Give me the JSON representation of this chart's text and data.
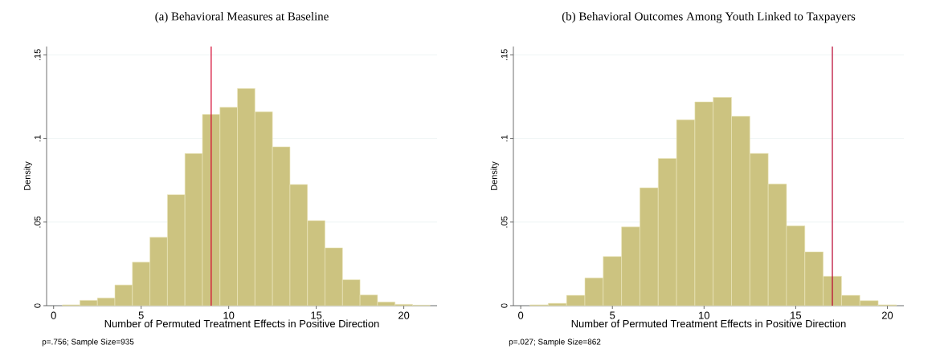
{
  "chart_data": [
    {
      "type": "histogram",
      "title": "(a) Behavioral Measures at Baseline",
      "xlabel": "Number of Permuted Treatment Effects in Positive Direction",
      "ylabel": "Density",
      "annotations": [
        "p=.756; Sample Size=935"
      ],
      "bins": [
        0.5,
        1.5,
        2.5,
        3.5,
        4.5,
        5.5,
        6.5,
        7.5,
        8.5,
        9.5,
        10.5,
        11.5,
        12.5,
        13.5,
        14.5,
        15.5,
        16.5,
        17.5,
        18.5,
        19.5,
        20.5,
        21.5
      ],
      "values": [
        0.0005,
        0.0032,
        0.0046,
        0.0124,
        0.026,
        0.0409,
        0.0664,
        0.091,
        0.1144,
        0.1187,
        0.1299,
        0.116,
        0.095,
        0.0725,
        0.0509,
        0.0346,
        0.0155,
        0.0064,
        0.0022,
        0.0008,
        0.0003
      ],
      "color": "#ccc380",
      "xlim": [
        -0.4,
        21.9
      ],
      "ylim": [
        0,
        0.155
      ],
      "xticks": [
        0,
        5,
        10,
        15,
        20
      ],
      "yticks": [
        0,
        {
          "value": 0.05,
          "label": ".05"
        },
        {
          "value": 0.1,
          "label": ".1"
        },
        {
          "value": 0.15,
          "label": ".15"
        }
      ],
      "grid": "y",
      "ref_lines": [
        {
          "axis": "x",
          "value": 9,
          "color": "#d4002a"
        }
      ]
    },
    {
      "type": "histogram",
      "title": "(b) Behavioral Outcomes Among Youth Linked to Taxpayers",
      "xlabel": "Number of Permuted Treatment Effects in Positive Direction",
      "ylabel": "Density",
      "annotations": [
        "p=.027; Sample Size=862"
      ],
      "bins": [
        0.5,
        1.5,
        2.5,
        3.5,
        4.5,
        5.5,
        6.5,
        7.5,
        8.5,
        9.5,
        10.5,
        11.5,
        12.5,
        13.5,
        14.5,
        15.5,
        16.5,
        17.5,
        18.5,
        19.5,
        20.5
      ],
      "values": [
        0.0005,
        0.0014,
        0.0062,
        0.0166,
        0.0294,
        0.0471,
        0.0705,
        0.0881,
        0.1112,
        0.1219,
        0.1246,
        0.1133,
        0.0911,
        0.0728,
        0.0477,
        0.0322,
        0.0176,
        0.0062,
        0.003,
        0.0005
      ],
      "color": "#ccc380",
      "xlim": [
        -0.4,
        20.9
      ],
      "ylim": [
        0,
        0.155
      ],
      "xticks": [
        0,
        5,
        10,
        15,
        20
      ],
      "yticks": [
        0,
        {
          "value": 0.05,
          "label": ".05"
        },
        {
          "value": 0.1,
          "label": ".1"
        },
        {
          "value": 0.15,
          "label": ".15"
        }
      ],
      "grid": "y",
      "ref_lines": [
        {
          "axis": "x",
          "value": 17,
          "color": "#b8002e"
        }
      ]
    }
  ]
}
